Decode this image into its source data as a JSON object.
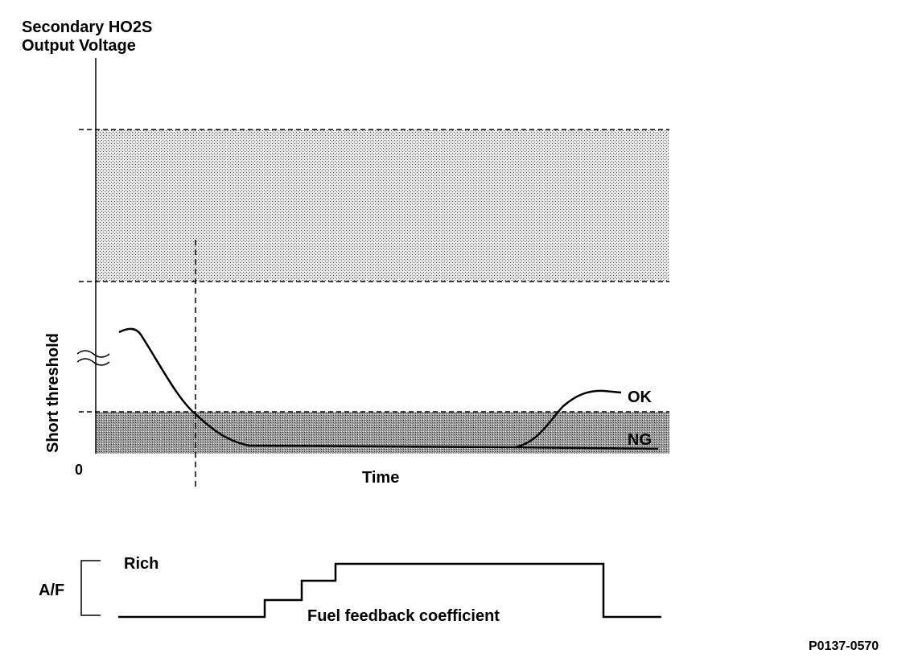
{
  "diagram": {
    "ylabel_line1": "Secondary HO2S",
    "ylabel_line2": "Output Voltage",
    "short_threshold_label": "Short threshold",
    "origin_label": "0",
    "xlabel": "Time",
    "ok_label": "OK",
    "ng_label": "NG",
    "af_label": "A/F",
    "rich_label": "Rich",
    "fuel_feedback_label": "Fuel feedback coefficient",
    "figure_code": "P0137-0570"
  },
  "colors": {
    "ink": "#000000",
    "light_band": "#d9d9d9",
    "dark_band": "#a6a6a6"
  }
}
